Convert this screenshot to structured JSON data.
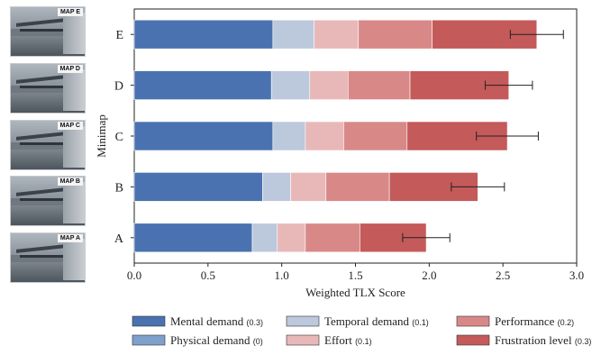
{
  "minimaps": [
    {
      "label": "MAP E"
    },
    {
      "label": "MAP D"
    },
    {
      "label": "MAP C"
    },
    {
      "label": "MAP B"
    },
    {
      "label": "MAP A"
    }
  ],
  "chart_data": {
    "type": "bar",
    "orientation": "horizontal",
    "stacked": true,
    "categories": [
      "A",
      "B",
      "C",
      "D",
      "E"
    ],
    "xlabel": "Weighted TLX Score",
    "ylabel": "Minimap",
    "xlim": [
      0,
      3.0
    ],
    "xticks": [
      "0.0",
      "0.5",
      "1.0",
      "1.5",
      "2.0",
      "2.5",
      "3.0"
    ],
    "grid": false,
    "legend_position": "bottom",
    "series": [
      {
        "name": "Mental demand",
        "weight": "(0.3)",
        "color": "#4a72b0",
        "values": [
          0.8,
          0.87,
          0.94,
          0.93,
          0.94
        ]
      },
      {
        "name": "Physical demand",
        "weight": "(0)",
        "color": "#7f9fcc",
        "values": [
          0.0,
          0.0,
          0.0,
          0.0,
          0.0
        ]
      },
      {
        "name": "Temporal demand",
        "weight": "(0.1)",
        "color": "#bcc8dc",
        "values": [
          0.17,
          0.19,
          0.22,
          0.26,
          0.28
        ]
      },
      {
        "name": "Effort",
        "weight": "(0.1)",
        "color": "#e8b8b8",
        "values": [
          0.19,
          0.24,
          0.26,
          0.26,
          0.3
        ]
      },
      {
        "name": "Performance",
        "weight": "(0.2)",
        "color": "#d98888",
        "values": [
          0.37,
          0.43,
          0.43,
          0.42,
          0.5
        ]
      },
      {
        "name": "Frustration level",
        "weight": "(0.3)",
        "color": "#c45a5a",
        "values": [
          0.45,
          0.6,
          0.68,
          0.67,
          0.71
        ]
      }
    ],
    "totals": [
      1.98,
      2.33,
      2.53,
      2.54,
      2.73
    ],
    "error": [
      0.16,
      0.18,
      0.21,
      0.16,
      0.18
    ]
  }
}
